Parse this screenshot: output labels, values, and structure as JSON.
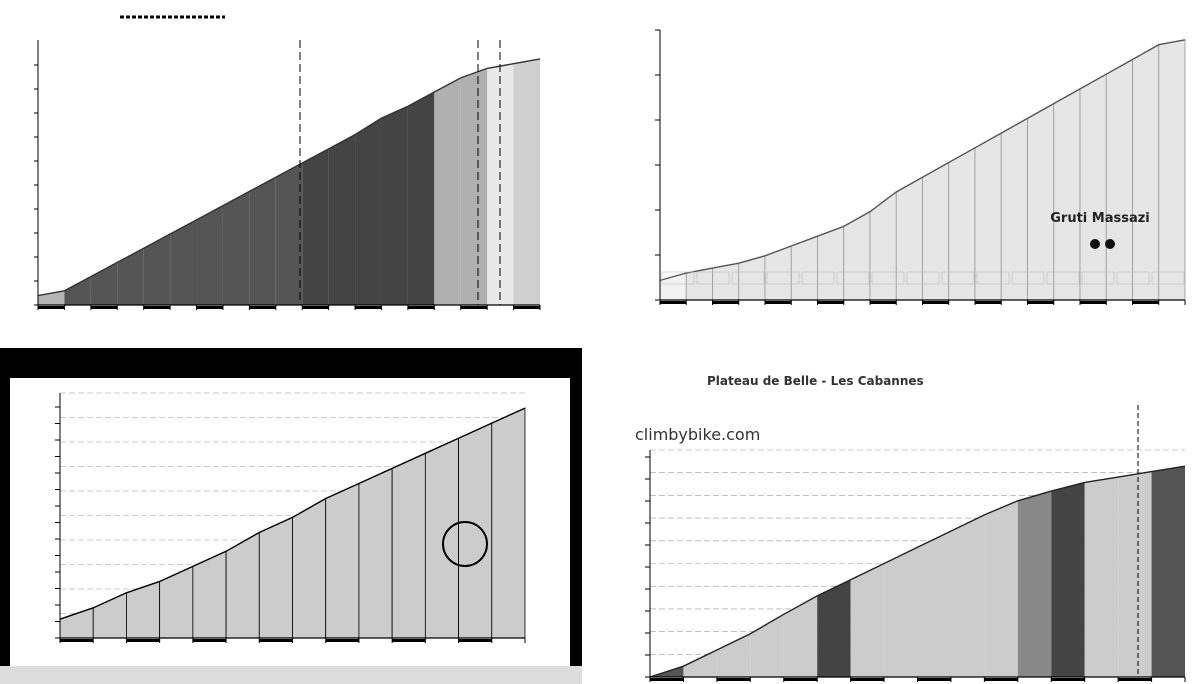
{
  "chart_data": [
    {
      "type": "area",
      "title": "",
      "panel": "top-left",
      "x_ticks": [
        "0",
        "1",
        "2",
        "3",
        "4",
        "5",
        "6",
        "7",
        "8",
        "9",
        "10",
        "11",
        "12",
        "13",
        "14",
        "15",
        "16",
        "17",
        "18",
        "19"
      ],
      "x": [
        0,
        1,
        2,
        3,
        4,
        5,
        6,
        7,
        8,
        9,
        10,
        11,
        12,
        13,
        14,
        15,
        16,
        17,
        18,
        19
      ],
      "elevation": [
        20,
        30,
        60,
        90,
        120,
        150,
        180,
        210,
        240,
        270,
        300,
        330,
        360,
        395,
        420,
        450,
        480,
        500,
        510,
        520
      ],
      "segment_shades": [
        "#b5b5b5",
        "#555555",
        "#555555",
        "#555555",
        "#555555",
        "#555555",
        "#555555",
        "#555555",
        "#555555",
        "#555555",
        "#444444",
        "#444444",
        "#444444",
        "#444444",
        "#444444",
        "#b0b0b0",
        "#b0b0b0",
        "#e8e8e8",
        "#cfcfcf",
        "#cfcfcf"
      ],
      "xlim": [
        0,
        19
      ],
      "ylim": [
        0,
        560
      ],
      "grid": false
    },
    {
      "type": "area",
      "title": "",
      "panel": "top-right",
      "x": [
        0,
        1,
        2,
        3,
        4,
        5,
        6,
        7,
        8,
        9,
        10,
        11,
        12,
        13,
        14,
        15,
        16,
        17,
        18,
        19,
        20
      ],
      "elevation": [
        990,
        1005,
        1015,
        1025,
        1040,
        1060,
        1080,
        1100,
        1130,
        1170,
        1200,
        1230,
        1260,
        1290,
        1320,
        1350,
        1380,
        1410,
        1440,
        1470,
        1480
      ],
      "segment_shades": [
        "#f2f2f2",
        "#e6e6e6",
        "#e6e6e6",
        "#e6e6e6",
        "#e6e6e6",
        "#e6e6e6",
        "#e6e6e6",
        "#e6e6e6",
        "#e6e6e6",
        "#e6e6e6",
        "#e6e6e6",
        "#e6e6e6",
        "#e6e6e6",
        "#e6e6e6",
        "#e6e6e6",
        "#e6e6e6",
        "#e6e6e6",
        "#e6e6e6",
        "#e6e6e6",
        "#e6e6e6"
      ],
      "xlim": [
        0,
        20
      ],
      "ylim": [
        950,
        1500
      ],
      "grid": false,
      "footer_label": "Gruti Massazi"
    },
    {
      "type": "area",
      "title": "",
      "panel": "bottom-left",
      "x": [
        0,
        1,
        2,
        3,
        4,
        5,
        6,
        7,
        8,
        9,
        10,
        11,
        12,
        13,
        14
      ],
      "elevation": [
        200,
        230,
        270,
        300,
        340,
        380,
        430,
        470,
        520,
        560,
        600,
        640,
        680,
        720,
        760
      ],
      "segment_shades": [
        "#cccccc",
        "#cccccc",
        "#cccccc",
        "#cccccc",
        "#cccccc",
        "#cccccc",
        "#cccccc",
        "#cccccc",
        "#cccccc",
        "#cccccc",
        "#cccccc",
        "#cccccc",
        "#cccccc",
        "#cccccc"
      ],
      "xlim": [
        0,
        14
      ],
      "ylim": [
        150,
        800
      ],
      "grid": true,
      "header_bg": "#000000"
    },
    {
      "type": "area",
      "title": "Plateau de Belle - Les Cabannes",
      "subtitle": "climbybike.com",
      "panel": "bottom-right",
      "x": [
        0,
        1,
        2,
        3,
        4,
        5,
        6,
        7,
        8,
        9,
        10,
        11,
        12,
        13,
        14,
        15,
        16
      ],
      "elevation": [
        0,
        10,
        25,
        40,
        58,
        75,
        90,
        105,
        120,
        135,
        150,
        163,
        172,
        180,
        185,
        190,
        195
      ],
      "segment_shades": [
        "#555555",
        "#cccccc",
        "#cccccc",
        "#cccccc",
        "#cccccc",
        "#444444",
        "#cccccc",
        "#cccccc",
        "#cccccc",
        "#cccccc",
        "#cccccc",
        "#888888",
        "#444444",
        "#cccccc",
        "#cccccc",
        "#555555"
      ],
      "xlim": [
        0,
        16
      ],
      "ylim": [
        0,
        210
      ],
      "grid": true
    }
  ]
}
